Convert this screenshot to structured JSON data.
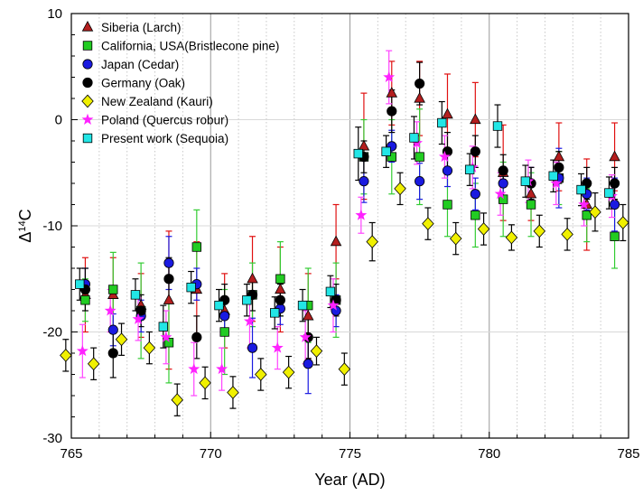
{
  "chart_data": {
    "type": "scatter",
    "title": "",
    "xlabel": "Year (AD)",
    "ylabel_base": "Δ",
    "ylabel_sup": "14",
    "ylabel_tail": "C",
    "xlim": [
      765,
      785
    ],
    "ylim": [
      -30,
      10
    ],
    "xticks": [
      765,
      770,
      775,
      780,
      785
    ],
    "yticks": [
      -30,
      -20,
      -10,
      0,
      10
    ],
    "grid": true,
    "legend_position": "top-left",
    "series": [
      {
        "name": "Siberia  (Larch)",
        "marker": "triangle",
        "color": "#b41e1e",
        "err_color": "#e01010",
        "points": [
          {
            "x": 765.5,
            "y": -16.5,
            "e": 3.5
          },
          {
            "x": 766.5,
            "y": -16.5,
            "e": 3.5
          },
          {
            "x": 767.5,
            "y": -17.5,
            "e": 3.0
          },
          {
            "x": 768.5,
            "y": -17.0,
            "e": 6.5
          },
          {
            "x": 769.5,
            "y": -16.0,
            "e": 4.5
          },
          {
            "x": 770.5,
            "y": -18.0,
            "e": 3.5
          },
          {
            "x": 771.5,
            "y": -15.0,
            "e": 4.0
          },
          {
            "x": 772.5,
            "y": -16.0,
            "e": 4.0
          },
          {
            "x": 773.5,
            "y": -18.5,
            "e": 4.0
          },
          {
            "x": 774.5,
            "y": -11.5,
            "e": 3.5
          },
          {
            "x": 775.5,
            "y": -2.5,
            "e": 5.0
          },
          {
            "x": 776.5,
            "y": 2.5,
            "e": 3.0
          },
          {
            "x": 777.5,
            "y": 2.0,
            "e": 3.5
          },
          {
            "x": 778.5,
            "y": 0.5,
            "e": 3.8
          },
          {
            "x": 779.5,
            "y": 0.0,
            "e": 3.5
          },
          {
            "x": 780.5,
            "y": -5.0,
            "e": 4.5
          },
          {
            "x": 781.5,
            "y": -7.0,
            "e": 2.5
          },
          {
            "x": 782.5,
            "y": -3.5,
            "e": 3.2
          },
          {
            "x": 783.5,
            "y": -8.0,
            "e": 4.3
          },
          {
            "x": 784.5,
            "y": -3.5,
            "e": 3.2
          }
        ]
      },
      {
        "name": "California, USA(Bristlecone pine)",
        "marker": "square",
        "color": "#22cc22",
        "err_color": "#33cc33",
        "points": [
          {
            "x": 765.5,
            "y": -17.0,
            "e": 2.0
          },
          {
            "x": 766.5,
            "y": -16.0,
            "e": 3.5
          },
          {
            "x": 767.5,
            "y": -18.0,
            "e": 4.5
          },
          {
            "x": 768.5,
            "y": -21.0,
            "e": 3.8
          },
          {
            "x": 769.5,
            "y": -12.0,
            "e": 3.5
          },
          {
            "x": 770.5,
            "y": -20.0,
            "e": 4.0
          },
          {
            "x": 771.5,
            "y": -16.5,
            "e": 3.0
          },
          {
            "x": 772.5,
            "y": -15.0,
            "e": 3.5
          },
          {
            "x": 773.5,
            "y": -17.5,
            "e": 3.5
          },
          {
            "x": 774.5,
            "y": -17.0,
            "e": 3.5
          },
          {
            "x": 775.5,
            "y": -3.5,
            "e": 3.5
          },
          {
            "x": 776.5,
            "y": -3.5,
            "e": 3.5
          },
          {
            "x": 777.5,
            "y": -3.5,
            "e": 4.5
          },
          {
            "x": 778.5,
            "y": -8.0,
            "e": 3.0
          },
          {
            "x": 779.5,
            "y": -9.0,
            "e": 3.0
          },
          {
            "x": 780.5,
            "y": -7.5,
            "e": 3.5
          },
          {
            "x": 781.5,
            "y": -8.0,
            "e": 3.0
          },
          {
            "x": 782.5,
            "y": -5.5,
            "e": 2.5
          },
          {
            "x": 783.5,
            "y": -9.0,
            "e": 2.5
          },
          {
            "x": 784.5,
            "y": -11.0,
            "e": 3.0
          }
        ]
      },
      {
        "name": "Japan (Cedar)",
        "marker": "circle",
        "color": "#1a1ae0",
        "err_color": "#1a1ae0",
        "points": [
          {
            "x": 765.5,
            "y": -15.5,
            "e": 1.5
          },
          {
            "x": 766.5,
            "y": -19.8,
            "e": 1.5
          },
          {
            "x": 767.5,
            "y": -18.5,
            "e": 1.5
          },
          {
            "x": 768.5,
            "y": -13.5,
            "e": 2.5
          },
          {
            "x": 769.5,
            "y": -15.5,
            "e": 1.5
          },
          {
            "x": 770.5,
            "y": -18.5,
            "e": 1.5
          },
          {
            "x": 771.5,
            "y": -21.5,
            "e": 2.8
          },
          {
            "x": 772.5,
            "y": -17.8,
            "e": 1.5
          },
          {
            "x": 773.5,
            "y": -23.0,
            "e": 2.8
          },
          {
            "x": 774.5,
            "y": -18.0,
            "e": 1.5
          },
          {
            "x": 775.5,
            "y": -5.8,
            "e": 2.0
          },
          {
            "x": 776.5,
            "y": -2.5,
            "e": 1.5
          },
          {
            "x": 777.5,
            "y": -5.8,
            "e": 1.7
          },
          {
            "x": 778.5,
            "y": -4.8,
            "e": 1.5
          },
          {
            "x": 779.5,
            "y": -7.0,
            "e": 1.5
          },
          {
            "x": 780.5,
            "y": -6.0,
            "e": 1.5
          },
          {
            "x": 781.5,
            "y": -6.0,
            "e": 1.5
          },
          {
            "x": 782.5,
            "y": -5.5,
            "e": 2.8
          },
          {
            "x": 783.5,
            "y": -7.0,
            "e": 1.5
          },
          {
            "x": 784.5,
            "y": -8.0,
            "e": 2.5
          }
        ]
      },
      {
        "name": "Germany (Oak)",
        "marker": "circle",
        "color": "#000000",
        "err_color": "#000000",
        "points": [
          {
            "x": 765.5,
            "y": -16.0,
            "e": 2.0
          },
          {
            "x": 766.5,
            "y": -22.0,
            "e": 2.3
          },
          {
            "x": 767.5,
            "y": -18.0,
            "e": 1.5
          },
          {
            "x": 768.5,
            "y": -15.0,
            "e": 2.0
          },
          {
            "x": 769.5,
            "y": -20.5,
            "e": 2.0
          },
          {
            "x": 770.5,
            "y": -17.0,
            "e": 1.5
          },
          {
            "x": 771.5,
            "y": -16.5,
            "e": 1.5
          },
          {
            "x": 772.5,
            "y": -17.0,
            "e": 1.5
          },
          {
            "x": 773.5,
            "y": -20.5,
            "e": 2.0
          },
          {
            "x": 774.5,
            "y": -17.0,
            "e": 1.5
          },
          {
            "x": 775.5,
            "y": -3.5,
            "e": 1.5
          },
          {
            "x": 776.5,
            "y": 0.8,
            "e": 2.0
          },
          {
            "x": 777.5,
            "y": 3.4,
            "e": 2.0
          },
          {
            "x": 778.5,
            "y": -3.0,
            "e": 1.8
          },
          {
            "x": 779.5,
            "y": -3.0,
            "e": 1.5
          },
          {
            "x": 780.5,
            "y": -4.8,
            "e": 1.5
          },
          {
            "x": 781.5,
            "y": -6.0,
            "e": 1.5
          },
          {
            "x": 782.5,
            "y": -4.5,
            "e": 1.5
          },
          {
            "x": 783.5,
            "y": -6.0,
            "e": 1.5
          },
          {
            "x": 784.5,
            "y": -6.0,
            "e": 1.5
          }
        ]
      },
      {
        "name": "New Zealand (Kauri)",
        "marker": "diamond",
        "color": "#f0f000",
        "err_color": "#000000",
        "points": [
          {
            "x": 764.8,
            "y": -22.2,
            "e": 1.5
          },
          {
            "x": 765.8,
            "y": -23.0,
            "e": 1.5
          },
          {
            "x": 766.8,
            "y": -20.7,
            "e": 1.5
          },
          {
            "x": 767.8,
            "y": -21.5,
            "e": 1.5
          },
          {
            "x": 768.8,
            "y": -26.4,
            "e": 1.5
          },
          {
            "x": 769.8,
            "y": -24.8,
            "e": 1.5
          },
          {
            "x": 770.8,
            "y": -25.7,
            "e": 1.5
          },
          {
            "x": 771.8,
            "y": -24.0,
            "e": 1.5
          },
          {
            "x": 772.8,
            "y": -23.8,
            "e": 1.5
          },
          {
            "x": 773.8,
            "y": -21.8,
            "e": 1.3
          },
          {
            "x": 774.8,
            "y": -23.5,
            "e": 1.5
          },
          {
            "x": 775.8,
            "y": -11.5,
            "e": 1.8
          },
          {
            "x": 776.8,
            "y": -6.5,
            "e": 1.5
          },
          {
            "x": 777.8,
            "y": -9.8,
            "e": 1.5
          },
          {
            "x": 778.8,
            "y": -11.2,
            "e": 1.5
          },
          {
            "x": 779.8,
            "y": -10.3,
            "e": 1.5
          },
          {
            "x": 780.8,
            "y": -11.1,
            "e": 1.2
          },
          {
            "x": 781.8,
            "y": -10.5,
            "e": 1.5
          },
          {
            "x": 782.8,
            "y": -10.8,
            "e": 1.5
          },
          {
            "x": 783.8,
            "y": -8.7,
            "e": 1.8
          },
          {
            "x": 784.8,
            "y": -9.7,
            "e": 1.7
          }
        ]
      },
      {
        "name": "Poland (Quercus robur)",
        "marker": "star",
        "color": "#ff22ff",
        "err_color": "#ff44ff",
        "points": [
          {
            "x": 765.4,
            "y": -21.8,
            "e": 2.5
          },
          {
            "x": 766.4,
            "y": -18.0,
            "e": 2.0
          },
          {
            "x": 767.4,
            "y": -18.8,
            "e": 2.0
          },
          {
            "x": 768.4,
            "y": -20.5,
            "e": 2.5
          },
          {
            "x": 769.4,
            "y": -23.5,
            "e": 2.5
          },
          {
            "x": 770.4,
            "y": -23.5,
            "e": 2.0
          },
          {
            "x": 771.4,
            "y": -19.0,
            "e": 2.5
          },
          {
            "x": 772.4,
            "y": -21.5,
            "e": 2.0
          },
          {
            "x": 773.4,
            "y": -20.5,
            "e": 2.5
          },
          {
            "x": 774.4,
            "y": -17.5,
            "e": 2.5
          },
          {
            "x": 775.4,
            "y": -9.0,
            "e": 1.7
          },
          {
            "x": 776.4,
            "y": 4.0,
            "e": 2.5
          },
          {
            "x": 777.4,
            "y": -2.2,
            "e": 2.0
          },
          {
            "x": 778.4,
            "y": -3.5,
            "e": 2.0
          },
          {
            "x": 779.4,
            "y": -4.5,
            "e": 2.0
          },
          {
            "x": 780.4,
            "y": -7.0,
            "e": 2.0
          },
          {
            "x": 781.4,
            "y": -5.8,
            "e": 2.0
          },
          {
            "x": 782.4,
            "y": -6.0,
            "e": 2.0
          },
          {
            "x": 783.4,
            "y": -8.0,
            "e": 2.0
          },
          {
            "x": 784.4,
            "y": -7.2,
            "e": 2.0
          }
        ]
      },
      {
        "name": "Present work (Sequoia)",
        "marker": "square",
        "color": "#22e6e6",
        "err_color": "#000000",
        "points": [
          {
            "x": 765.3,
            "y": -15.5,
            "e": 1.5
          },
          {
            "x": 767.3,
            "y": -16.5,
            "e": 1.5
          },
          {
            "x": 768.3,
            "y": -19.5,
            "e": 2.0
          },
          {
            "x": 769.3,
            "y": -15.8,
            "e": 1.5
          },
          {
            "x": 770.3,
            "y": -17.5,
            "e": 1.5
          },
          {
            "x": 771.3,
            "y": -17.0,
            "e": 1.5
          },
          {
            "x": 772.3,
            "y": -18.2,
            "e": 1.5
          },
          {
            "x": 773.3,
            "y": -17.5,
            "e": 1.5
          },
          {
            "x": 774.3,
            "y": -16.2,
            "e": 1.5
          },
          {
            "x": 775.3,
            "y": -3.2,
            "e": 2.5
          },
          {
            "x": 776.3,
            "y": -3.0,
            "e": 1.5
          },
          {
            "x": 777.3,
            "y": -1.7,
            "e": 2.0
          },
          {
            "x": 778.3,
            "y": -0.3,
            "e": 2.0
          },
          {
            "x": 779.3,
            "y": -4.7,
            "e": 1.5
          },
          {
            "x": 780.3,
            "y": -0.6,
            "e": 2.0
          },
          {
            "x": 781.3,
            "y": -5.8,
            "e": 1.5
          },
          {
            "x": 782.3,
            "y": -5.3,
            "e": 1.5
          },
          {
            "x": 783.3,
            "y": -6.6,
            "e": 1.5
          },
          {
            "x": 784.3,
            "y": -6.9,
            "e": 1.5
          }
        ]
      }
    ]
  }
}
